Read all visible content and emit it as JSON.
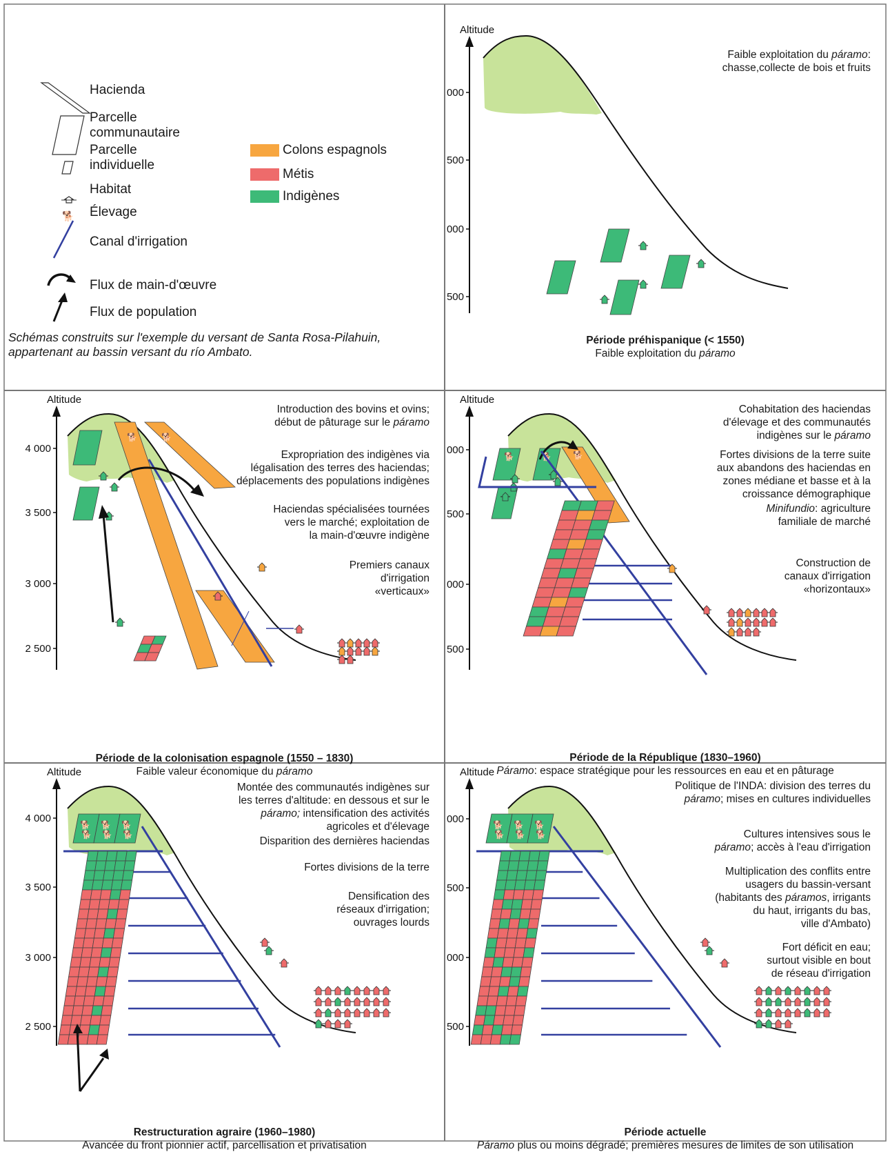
{
  "legend": {
    "hacienda": "Hacienda",
    "parcelle_comm": [
      "Parcelle",
      "communautaire"
    ],
    "parcelle_ind": [
      "Parcelle",
      "individuelle"
    ],
    "habitat": "Habitat",
    "elevage": "Élevage",
    "canal": "Canal d'irrigation",
    "flux_mo": "Flux de main-d'œuvre",
    "flux_pop": "Flux de population",
    "colons": "Colons espagnols",
    "metis": "Métis",
    "indigenes": "Indigènes",
    "note": "Schémas construits sur l'exemple du versant de Santa Rosa-Pilahuin, appartenant au bassin versant du río Ambato."
  },
  "colors": {
    "colons": "#f7a640",
    "metis": "#ee6b6b",
    "indigenes": "#3dba78",
    "paramo": "#c8e39a",
    "canal": "#3340a0"
  },
  "axis": {
    "title": "Altitude",
    "ticks": [
      "4 000",
      "3 500",
      "3 000",
      "2 500"
    ]
  },
  "panels": [
    {
      "id": "prehispanique",
      "title": "Période préhispanique (< 1550)",
      "subtitle": [
        "Faible exploitation du ",
        "páramo",
        ""
      ],
      "notes": [
        [
          "Faible exploitation du ",
          "páramo",
          ":"
        ],
        [
          "chasse,collecte de bois et fruits"
        ]
      ]
    },
    {
      "id": "colonisation",
      "title": "Période de la colonisation espagnole (1550 – 1830)",
      "subtitle": [
        "Faible valeur économique du ",
        "páramo",
        ""
      ],
      "notes": [
        [
          "Introduction des bovins et ovins;"
        ],
        [
          "début de pâturage sur le ",
          "páramo",
          ""
        ],
        [
          "Expropriation des indigènes via"
        ],
        [
          "légalisation des terres des haciendas;"
        ],
        [
          "déplacements des populations indigènes"
        ],
        [
          "Haciendas spécialisées tournées"
        ],
        [
          "vers le marché; exploitation de"
        ],
        [
          "la main-d'œuvre indigène"
        ],
        [
          "Premiers canaux"
        ],
        [
          "d'irrigation"
        ],
        [
          "«verticaux»"
        ]
      ]
    },
    {
      "id": "republique",
      "title": "Période de la République (1830–1960)",
      "subtitle": [
        "",
        "Páramo",
        ": espace stratégique pour les ressources en eau et en pâturage"
      ],
      "notes": [
        [
          "Cohabitation des haciendas"
        ],
        [
          "d'élevage et des communautés"
        ],
        [
          "indigènes sur le ",
          "páramo",
          ""
        ],
        [
          "Fortes divisions de la terre suite"
        ],
        [
          "aux abandons des haciendas en"
        ],
        [
          "zones médiane et basse et à la"
        ],
        [
          "croissance démographique"
        ],
        [
          "",
          "Minifundio",
          ": agriculture"
        ],
        [
          "familiale de marché"
        ],
        [
          "Construction de"
        ],
        [
          "canaux d'irrigation"
        ],
        [
          "«horizontaux»"
        ]
      ]
    },
    {
      "id": "restructuration",
      "title": "Restructuration agraire (1960–1980)",
      "subtitle": [
        "Avancée du front pionnier actif, parcellisation et privatisation",
        "",
        ""
      ],
      "notes": [
        [
          "Montée des communautés indigènes sur"
        ],
        [
          "les terres d'altitude: en dessous et sur le"
        ],
        [
          "",
          "páramo;",
          " intensification des activités"
        ],
        [
          "agricoles et d'élevage"
        ],
        [
          "Disparition des dernières haciendas"
        ],
        [
          "Fortes divisions de la terre"
        ],
        [
          "Densification des"
        ],
        [
          "réseaux d'irrigation;"
        ],
        [
          "ouvrages lourds"
        ]
      ]
    },
    {
      "id": "actuelle",
      "title": "Période actuelle",
      "subtitle": [
        "",
        "Páramo",
        " plus ou moins dégradé; premières mesures de limites de son utilisation"
      ],
      "notes": [
        [
          "Politique de l'INDA: division des terres du"
        ],
        [
          "",
          "páramo",
          "; mises en cultures individuelles"
        ],
        [
          "Cultures intensives sous le"
        ],
        [
          "",
          "páramo",
          "; accès à l'eau d'irrigation"
        ],
        [
          "Multiplication des conflits entre"
        ],
        [
          "usagers du bassin-versant"
        ],
        [
          "(habitants des ",
          "páramos",
          ", irrigants"
        ],
        [
          "du haut, irrigants du bas,"
        ],
        [
          "ville d'Ambato)"
        ],
        [
          "Fort déficit en eau;"
        ],
        [
          "surtout visible en bout"
        ],
        [
          "de réseau d'irrigation"
        ]
      ]
    }
  ]
}
